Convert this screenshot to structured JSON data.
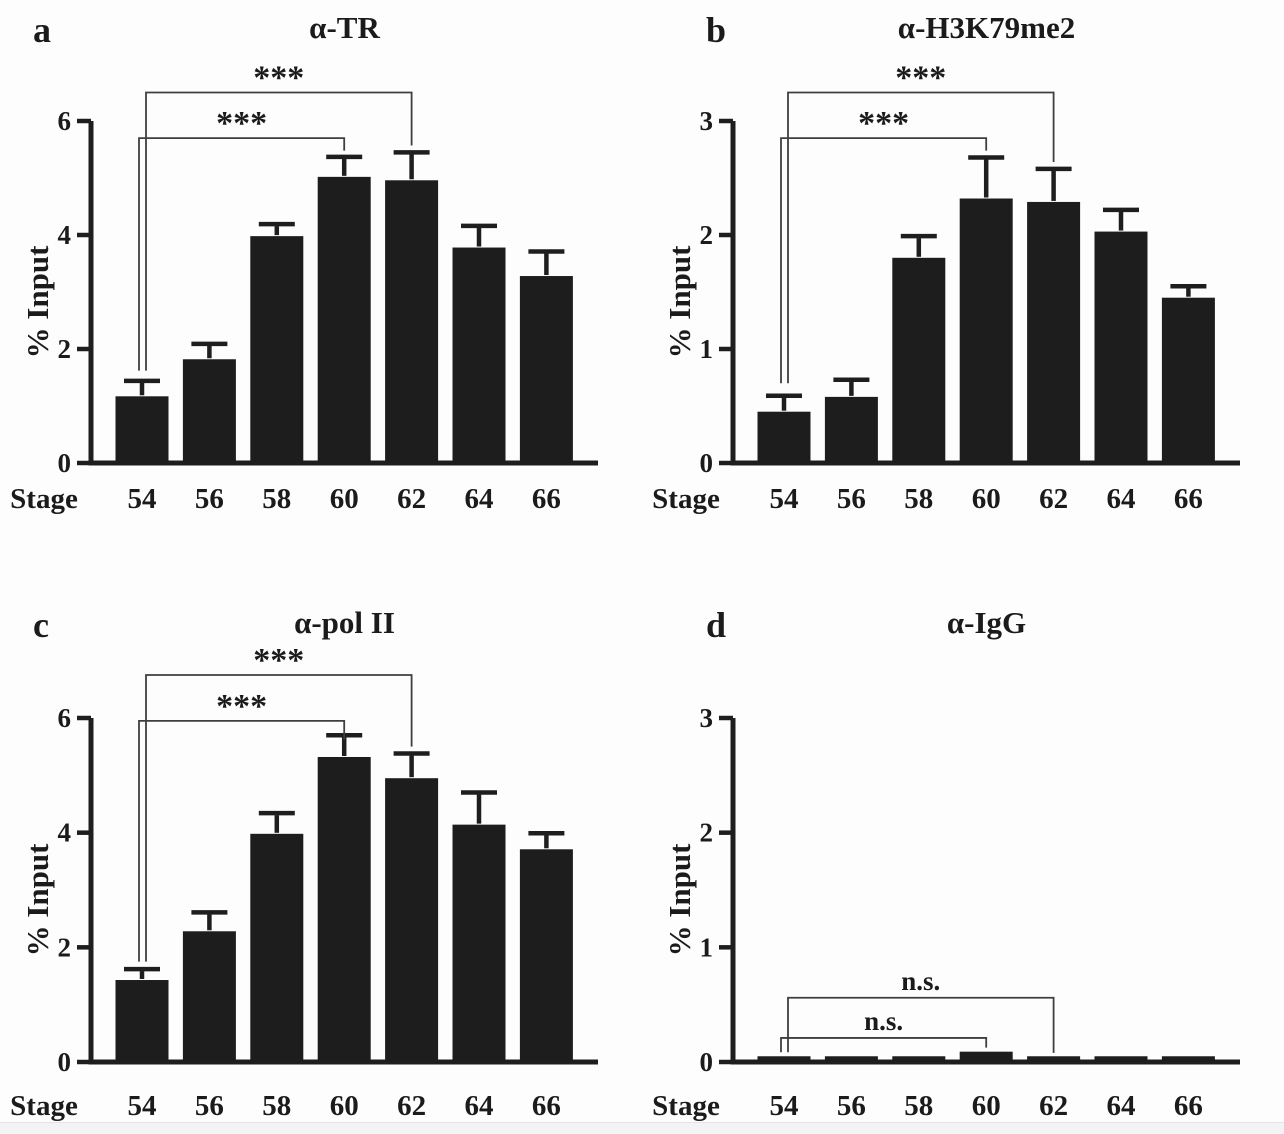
{
  "figure": {
    "background": "#fdfdfd",
    "bar_color": "#1d1d1d",
    "axis_color": "#1e1e1e",
    "bracket_color": "#3f3f3f",
    "text_color": "#1b1b1b"
  },
  "chart_data": [
    {
      "panel_letter": "a",
      "type": "bar",
      "title": "α-TR",
      "ylabel": "% Input",
      "x_prefix": "Stage",
      "categories": [
        "54",
        "56",
        "58",
        "60",
        "62",
        "64",
        "66"
      ],
      "values": [
        1.17,
        1.82,
        3.98,
        5.02,
        4.96,
        3.78,
        3.28
      ],
      "errors": [
        0.27,
        0.27,
        0.21,
        0.35,
        0.49,
        0.38,
        0.43
      ],
      "ylim": [
        0,
        6
      ],
      "yticks": [
        0,
        2,
        4,
        6
      ],
      "grid": false,
      "significance": [
        {
          "from": "54",
          "to": "60",
          "label": "***",
          "bracket_y": 5.7,
          "left_end": 1.62,
          "right_end": 5.48
        },
        {
          "from": "54",
          "to": "62",
          "label": "***",
          "bracket_y": 6.5,
          "left_end": 1.62,
          "right_end": 5.57
        }
      ]
    },
    {
      "panel_letter": "b",
      "type": "bar",
      "title": "α-H3K79me2",
      "ylabel": "% Input",
      "x_prefix": "Stage",
      "categories": [
        "54",
        "56",
        "58",
        "60",
        "62",
        "64",
        "66"
      ],
      "values": [
        0.45,
        0.58,
        1.8,
        2.32,
        2.29,
        2.03,
        1.45
      ],
      "errors": [
        0.14,
        0.15,
        0.19,
        0.36,
        0.29,
        0.19,
        0.1
      ],
      "ylim": [
        0,
        3
      ],
      "yticks": [
        0,
        1,
        2,
        3
      ],
      "grid": false,
      "significance": [
        {
          "from": "54",
          "to": "60",
          "label": "***",
          "bracket_y": 2.85,
          "left_end": 0.7,
          "right_end": 2.74
        },
        {
          "from": "54",
          "to": "62",
          "label": "***",
          "bracket_y": 3.25,
          "left_end": 0.7,
          "right_end": 2.64
        }
      ]
    },
    {
      "panel_letter": "c",
      "type": "bar",
      "title": "α-pol II",
      "ylabel": "% Input",
      "x_prefix": "Stage",
      "categories": [
        "54",
        "56",
        "58",
        "60",
        "62",
        "64",
        "66"
      ],
      "values": [
        1.43,
        2.28,
        3.98,
        5.32,
        4.95,
        4.14,
        3.71
      ],
      "errors": [
        0.19,
        0.33,
        0.36,
        0.38,
        0.43,
        0.56,
        0.28
      ],
      "ylim": [
        0,
        6
      ],
      "yticks": [
        0,
        2,
        4,
        6
      ],
      "grid": false,
      "significance": [
        {
          "from": "54",
          "to": "60",
          "label": "***",
          "bracket_y": 5.95,
          "left_end": 1.75,
          "right_end": 5.62
        },
        {
          "from": "54",
          "to": "62",
          "label": "***",
          "bracket_y": 6.75,
          "left_end": 1.75,
          "right_end": 5.5
        }
      ]
    },
    {
      "panel_letter": "d",
      "type": "bar",
      "title": "α-IgG",
      "ylabel": "% Input",
      "x_prefix": "Stage",
      "categories": [
        "54",
        "56",
        "58",
        "60",
        "62",
        "64",
        "66"
      ],
      "values": [
        0.05,
        0.05,
        0.05,
        0.09,
        0.05,
        0.05,
        0.05
      ],
      "errors": [
        0,
        0,
        0,
        0,
        0,
        0,
        0
      ],
      "ylim": [
        0,
        3
      ],
      "yticks": [
        0,
        1,
        2,
        3
      ],
      "grid": false,
      "significance": [
        {
          "from": "54",
          "to": "60",
          "label": "n.s.",
          "bracket_y": 0.21,
          "left_end": 0.085,
          "right_end": 0.125
        },
        {
          "from": "54",
          "to": "62",
          "label": "n.s.",
          "bracket_y": 0.56,
          "left_end": 0.085,
          "right_end": 0.08
        }
      ]
    }
  ]
}
